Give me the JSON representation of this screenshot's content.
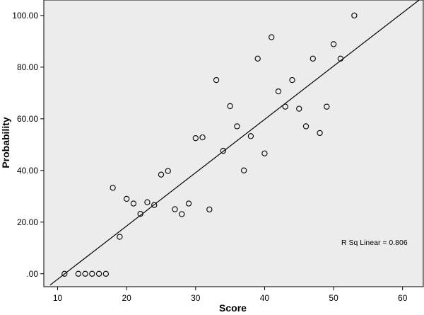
{
  "chart_data": {
    "type": "scatter",
    "xlabel": "Score",
    "ylabel": "Probability",
    "xlim": [
      8,
      63
    ],
    "ylim": [
      -5,
      106
    ],
    "x_ticks": [
      "10",
      "20",
      "30",
      "40",
      "50",
      "60"
    ],
    "x_tick_values": [
      10,
      20,
      30,
      40,
      50,
      60
    ],
    "y_ticks": [
      ".00",
      "20.00",
      "40.00",
      "60.00",
      "80.00",
      "100.00"
    ],
    "y_tick_values": [
      0,
      20,
      40,
      60,
      80,
      100
    ],
    "grid": false,
    "background_color": "#ececec",
    "marker": "hollow-circle",
    "points": [
      [
        11,
        0
      ],
      [
        13,
        0
      ],
      [
        14,
        0
      ],
      [
        15,
        0
      ],
      [
        16,
        0
      ],
      [
        17,
        0
      ],
      [
        18,
        33.3
      ],
      [
        19,
        14.3
      ],
      [
        20,
        29
      ],
      [
        21,
        27.2
      ],
      [
        22,
        23.2
      ],
      [
        23,
        27.7
      ],
      [
        24,
        26.6
      ],
      [
        25,
        38.4
      ],
      [
        26,
        39.8
      ],
      [
        27,
        25
      ],
      [
        28,
        23.1
      ],
      [
        29,
        27.2
      ],
      [
        30,
        52.5
      ],
      [
        31,
        52.8
      ],
      [
        32,
        24.9
      ],
      [
        33,
        75
      ],
      [
        34,
        47.6
      ],
      [
        35,
        64.9
      ],
      [
        36,
        57.1
      ],
      [
        37,
        40
      ],
      [
        38,
        53.3
      ],
      [
        39,
        83.3
      ],
      [
        40,
        46.6
      ],
      [
        41,
        91.6
      ],
      [
        42,
        70.6
      ],
      [
        43,
        64.7
      ],
      [
        44,
        75
      ],
      [
        45,
        63.9
      ],
      [
        46,
        57.1
      ],
      [
        47,
        83.3
      ],
      [
        48,
        54.5
      ],
      [
        49,
        64.7
      ],
      [
        50,
        88.9
      ],
      [
        51,
        83.3
      ],
      [
        53,
        100
      ]
    ],
    "fit_line": {
      "type": "linear",
      "x": [
        8.9,
        62.4
      ],
      "y": [
        -4.4,
        106
      ]
    },
    "annotation": "R Sq Linear = 0.806"
  }
}
